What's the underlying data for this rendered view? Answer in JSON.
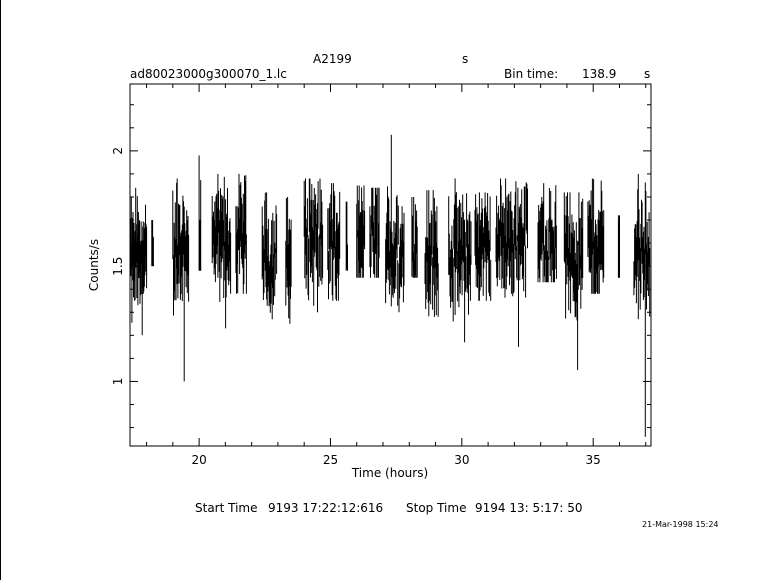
{
  "header": {
    "object": "A2199",
    "units_top": "s",
    "file": "ad80023000g300070_1.lc",
    "bin_label": "Bin time:",
    "bin_value": "138.9",
    "bin_unit": "s"
  },
  "footer": {
    "start_label": "Start Time",
    "start_value": "9193 17:22:12:616",
    "stop_label": "Stop Time",
    "stop_value": "9194 13: 5:17: 50",
    "stamp": "21-Mar-1998 15:24"
  },
  "chart_data": {
    "type": "line",
    "title": "A2199",
    "xlabel": "Time (hours)",
    "ylabel": "Counts/s",
    "xlim": [
      17.37,
      37.2
    ],
    "ylim": [
      0.72,
      2.29
    ],
    "x_ticks": [
      20,
      25,
      30,
      35
    ],
    "y_ticks": [
      1,
      1.5,
      2
    ],
    "x_tick_labels": [
      "20",
      "25",
      "30",
      "35"
    ],
    "y_tick_labels": [
      "1",
      "1.5",
      "2"
    ],
    "grid": false,
    "segments": [
      {
        "x_start": 17.4,
        "x_end": 18.0,
        "y_min": 1.2,
        "y_max": 1.84,
        "y_mean": 1.52,
        "n": 30
      },
      {
        "x_start": 18.2,
        "x_end": 18.26,
        "y_min": 1.5,
        "y_max": 1.7,
        "y_mean": 1.55,
        "n": 3
      },
      {
        "x_start": 19.0,
        "x_end": 19.6,
        "y_min": 1.0,
        "y_max": 1.88,
        "y_mean": 1.58,
        "n": 26
      },
      {
        "x_start": 20.0,
        "x_end": 20.06,
        "y_min": 1.48,
        "y_max": 1.98,
        "y_mean": 1.66,
        "n": 3
      },
      {
        "x_start": 20.5,
        "x_end": 21.2,
        "y_min": 1.23,
        "y_max": 1.9,
        "y_mean": 1.59,
        "n": 30
      },
      {
        "x_start": 21.4,
        "x_end": 21.8,
        "y_min": 1.38,
        "y_max": 1.9,
        "y_mean": 1.62,
        "n": 18
      },
      {
        "x_start": 22.4,
        "x_end": 22.95,
        "y_min": 1.27,
        "y_max": 1.82,
        "y_mean": 1.53,
        "n": 24
      },
      {
        "x_start": 23.3,
        "x_end": 23.5,
        "y_min": 1.25,
        "y_max": 1.8,
        "y_mean": 1.53,
        "n": 10
      },
      {
        "x_start": 24.0,
        "x_end": 24.7,
        "y_min": 1.3,
        "y_max": 1.88,
        "y_mean": 1.64,
        "n": 30
      },
      {
        "x_start": 24.9,
        "x_end": 25.35,
        "y_min": 1.35,
        "y_max": 1.86,
        "y_mean": 1.58,
        "n": 20
      },
      {
        "x_start": 25.6,
        "x_end": 25.65,
        "y_min": 1.48,
        "y_max": 1.78,
        "y_mean": 1.55,
        "n": 3
      },
      {
        "x_start": 26.0,
        "x_end": 26.3,
        "y_min": 1.45,
        "y_max": 1.85,
        "y_mean": 1.58,
        "n": 14
      },
      {
        "x_start": 26.5,
        "x_end": 26.85,
        "y_min": 1.45,
        "y_max": 1.84,
        "y_mean": 1.62,
        "n": 16
      },
      {
        "x_start": 27.1,
        "x_end": 27.8,
        "y_min": 1.3,
        "y_max": 2.07,
        "y_mean": 1.56,
        "n": 30
      },
      {
        "x_start": 28.1,
        "x_end": 28.3,
        "y_min": 1.45,
        "y_max": 1.8,
        "y_mean": 1.58,
        "n": 10
      },
      {
        "x_start": 28.6,
        "x_end": 29.1,
        "y_min": 1.28,
        "y_max": 1.83,
        "y_mean": 1.55,
        "n": 22
      },
      {
        "x_start": 29.5,
        "x_end": 30.35,
        "y_min": 1.17,
        "y_max": 1.88,
        "y_mean": 1.55,
        "n": 36
      },
      {
        "x_start": 30.5,
        "x_end": 31.1,
        "y_min": 1.35,
        "y_max": 1.82,
        "y_mean": 1.58,
        "n": 26
      },
      {
        "x_start": 31.3,
        "x_end": 32.5,
        "y_min": 1.15,
        "y_max": 1.88,
        "y_mean": 1.62,
        "n": 50
      },
      {
        "x_start": 32.9,
        "x_end": 33.6,
        "y_min": 1.43,
        "y_max": 1.86,
        "y_mean": 1.6,
        "n": 30
      },
      {
        "x_start": 33.9,
        "x_end": 34.6,
        "y_min": 1.05,
        "y_max": 1.82,
        "y_mean": 1.55,
        "n": 30
      },
      {
        "x_start": 34.8,
        "x_end": 35.4,
        "y_min": 1.38,
        "y_max": 1.88,
        "y_mean": 1.59,
        "n": 26
      },
      {
        "x_start": 35.96,
        "x_end": 36.0,
        "y_min": 1.45,
        "y_max": 1.72,
        "y_mean": 1.55,
        "n": 3
      },
      {
        "x_start": 36.55,
        "x_end": 37.15,
        "y_min": 0.76,
        "y_max": 1.9,
        "y_mean": 1.56,
        "n": 26
      }
    ]
  }
}
